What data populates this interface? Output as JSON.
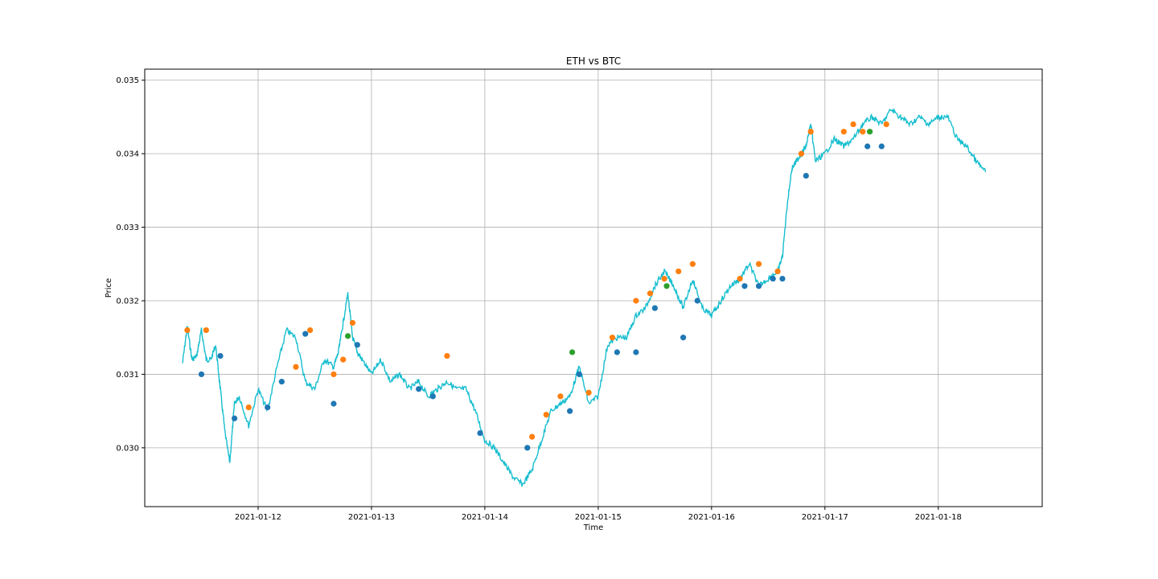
{
  "chart_data": {
    "type": "line",
    "title": "ETH vs BTC",
    "xlabel": "Time",
    "ylabel": "Price",
    "xlim": [
      "2021-01-11T00:00",
      "2021-01-18T22:00"
    ],
    "ylim": [
      0.0292,
      0.03515
    ],
    "x_ticks": [
      "2021-01-12",
      "2021-01-13",
      "2021-01-14",
      "2021-01-15",
      "2021-01-16",
      "2021-01-17",
      "2021-01-18"
    ],
    "y_ticks": [
      0.03,
      0.031,
      0.032,
      0.033,
      0.034,
      0.035
    ],
    "y_tick_labels": [
      "0.030",
      "0.031",
      "0.032",
      "0.033",
      "0.034",
      "0.035"
    ],
    "grid": true,
    "colors": {
      "line": "#17becf",
      "marker_blue": "#1f77b4",
      "marker_orange": "#ff7f0e",
      "marker_green": "#2ca02c"
    },
    "series": [
      {
        "marker": "line",
        "x": [
          "2021-01-11T08:00",
          "2021-01-11T09:00",
          "2021-01-11T10:00",
          "2021-01-11T11:00",
          "2021-01-11T12:00",
          "2021-01-11T13:00",
          "2021-01-11T14:00",
          "2021-01-11T15:00",
          "2021-01-11T16:00",
          "2021-01-11T17:00",
          "2021-01-11T18:00",
          "2021-01-11T19:00",
          "2021-01-11T20:00",
          "2021-01-11T22:00",
          "2021-01-12T00:00",
          "2021-01-12T02:00",
          "2021-01-12T04:00",
          "2021-01-12T06:00",
          "2021-01-12T08:00",
          "2021-01-12T10:00",
          "2021-01-12T12:00",
          "2021-01-12T14:00",
          "2021-01-12T16:00",
          "2021-01-12T17:00",
          "2021-01-12T18:00",
          "2021-01-12T19:00",
          "2021-01-12T20:00",
          "2021-01-12T21:00",
          "2021-01-12T22:00",
          "2021-01-13T00:00",
          "2021-01-13T02:00",
          "2021-01-13T04:00",
          "2021-01-13T06:00",
          "2021-01-13T08:00",
          "2021-01-13T10:00",
          "2021-01-13T12:00",
          "2021-01-13T14:00",
          "2021-01-13T16:00",
          "2021-01-13T18:00",
          "2021-01-13T20:00",
          "2021-01-13T22:00",
          "2021-01-14T00:00",
          "2021-01-14T02:00",
          "2021-01-14T04:00",
          "2021-01-14T06:00",
          "2021-01-14T08:00",
          "2021-01-14T10:00",
          "2021-01-14T12:00",
          "2021-01-14T14:00",
          "2021-01-14T16:00",
          "2021-01-14T18:00",
          "2021-01-14T20:00",
          "2021-01-14T22:00",
          "2021-01-15T00:00",
          "2021-01-15T02:00",
          "2021-01-15T04:00",
          "2021-01-15T06:00",
          "2021-01-15T08:00",
          "2021-01-15T10:00",
          "2021-01-15T12:00",
          "2021-01-15T14:00",
          "2021-01-15T16:00",
          "2021-01-15T18:00",
          "2021-01-15T20:00",
          "2021-01-15T22:00",
          "2021-01-16T00:00",
          "2021-01-16T02:00",
          "2021-01-16T04:00",
          "2021-01-16T06:00",
          "2021-01-16T08:00",
          "2021-01-16T10:00",
          "2021-01-16T12:00",
          "2021-01-16T14:00",
          "2021-01-16T15:00",
          "2021-01-16T16:00",
          "2021-01-16T17:00",
          "2021-01-16T18:00",
          "2021-01-16T19:00",
          "2021-01-16T20:00",
          "2021-01-16T21:00",
          "2021-01-16T22:00",
          "2021-01-17T00:00",
          "2021-01-17T02:00",
          "2021-01-17T04:00",
          "2021-01-17T06:00",
          "2021-01-17T08:00",
          "2021-01-17T10:00",
          "2021-01-17T12:00",
          "2021-01-17T14:00",
          "2021-01-17T16:00",
          "2021-01-17T18:00",
          "2021-01-17T20:00",
          "2021-01-17T22:00",
          "2021-01-18T00:00",
          "2021-01-18T02:00",
          "2021-01-18T04:00",
          "2021-01-18T06:00",
          "2021-01-18T08:00",
          "2021-01-18T10:00"
        ],
        "y": [
          0.03115,
          0.03165,
          0.0312,
          0.03125,
          0.0316,
          0.0312,
          0.0312,
          0.0314,
          0.0308,
          0.0302,
          0.0298,
          0.0306,
          0.0307,
          0.0303,
          0.0308,
          0.0305,
          0.0311,
          0.0316,
          0.0315,
          0.0309,
          0.0308,
          0.0312,
          0.0311,
          0.0313,
          0.0317,
          0.0321,
          0.0315,
          0.0313,
          0.0312,
          0.031,
          0.0312,
          0.0309,
          0.031,
          0.0308,
          0.0309,
          0.0307,
          0.0308,
          0.0309,
          0.0308,
          0.0308,
          0.0305,
          0.0301,
          0.03,
          0.0298,
          0.0296,
          0.0295,
          0.0297,
          0.0301,
          0.0305,
          0.0306,
          0.0307,
          0.0311,
          0.0306,
          0.0307,
          0.0314,
          0.0315,
          0.0315,
          0.0318,
          0.0319,
          0.0322,
          0.0324,
          0.0322,
          0.0319,
          0.0323,
          0.0319,
          0.0318,
          0.032,
          0.0322,
          0.0323,
          0.0325,
          0.0322,
          0.0323,
          0.0324,
          0.0326,
          0.0333,
          0.0338,
          0.0339,
          0.034,
          0.0341,
          0.0344,
          0.0339,
          0.034,
          0.0342,
          0.0341,
          0.0342,
          0.0344,
          0.0345,
          0.0344,
          0.0346,
          0.0345,
          0.0344,
          0.0345,
          0.0344,
          0.0345,
          0.0345,
          0.0342,
          0.0341,
          0.0339,
          0.03375
        ]
      },
      {
        "marker": "blue",
        "x": [
          "2021-01-11T12:00",
          "2021-01-11T16:00",
          "2021-01-11T19:00",
          "2021-01-12T02:00",
          "2021-01-12T05:00",
          "2021-01-12T10:00",
          "2021-01-12T16:00",
          "2021-01-12T21:00",
          "2021-01-13T10:00",
          "2021-01-13T13:00",
          "2021-01-13T23:00",
          "2021-01-14T09:00",
          "2021-01-14T18:00",
          "2021-01-14T20:00",
          "2021-01-15T04:00",
          "2021-01-15T08:00",
          "2021-01-15T12:00",
          "2021-01-15T18:00",
          "2021-01-15T21:00",
          "2021-01-16T07:00",
          "2021-01-16T10:00",
          "2021-01-16T13:00",
          "2021-01-16T15:00",
          "2021-01-16T20:00",
          "2021-01-17T09:00",
          "2021-01-17T12:00"
        ],
        "y": [
          0.031,
          0.03125,
          0.0304,
          0.03055,
          0.0309,
          0.03155,
          0.0306,
          0.0314,
          0.0308,
          0.0307,
          0.0302,
          0.03,
          0.0305,
          0.031,
          0.0313,
          0.0313,
          0.0319,
          0.0315,
          0.032,
          0.0322,
          0.0322,
          0.0323,
          0.0323,
          0.0337,
          0.0341,
          0.0341
        ]
      },
      {
        "marker": "orange",
        "x": [
          "2021-01-11T09:00",
          "2021-01-11T13:00",
          "2021-01-11T22:00",
          "2021-01-12T08:00",
          "2021-01-12T11:00",
          "2021-01-12T16:00",
          "2021-01-12T18:00",
          "2021-01-12T20:00",
          "2021-01-13T16:00",
          "2021-01-14T10:00",
          "2021-01-14T13:00",
          "2021-01-14T16:00",
          "2021-01-14T22:00",
          "2021-01-15T03:00",
          "2021-01-15T08:00",
          "2021-01-15T11:00",
          "2021-01-15T14:00",
          "2021-01-15T17:00",
          "2021-01-15T20:00",
          "2021-01-16T06:00",
          "2021-01-16T10:00",
          "2021-01-16T14:00",
          "2021-01-16T19:00",
          "2021-01-16T21:00",
          "2021-01-17T04:00",
          "2021-01-17T06:00",
          "2021-01-17T08:00",
          "2021-01-17T13:00"
        ],
        "y": [
          0.0316,
          0.0316,
          0.03055,
          0.0311,
          0.0316,
          0.031,
          0.0312,
          0.0317,
          0.03125,
          0.03015,
          0.03045,
          0.0307,
          0.03075,
          0.0315,
          0.032,
          0.0321,
          0.0323,
          0.0324,
          0.0325,
          0.0323,
          0.0325,
          0.0324,
          0.034,
          0.0343,
          0.0343,
          0.0344,
          0.0343,
          0.0344
        ]
      },
      {
        "marker": "green",
        "x": [
          "2021-01-12T19:00",
          "2021-01-14T18:30",
          "2021-01-15T14:30",
          "2021-01-17T09:30"
        ],
        "y": [
          0.03152,
          0.0313,
          0.0322,
          0.0343
        ]
      }
    ]
  }
}
